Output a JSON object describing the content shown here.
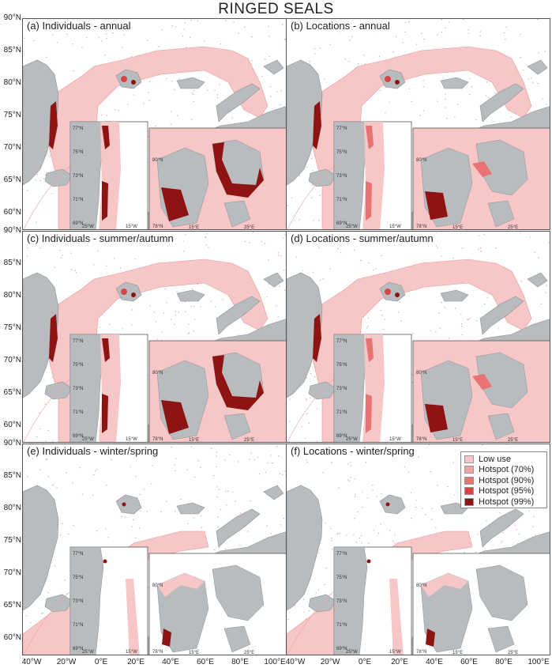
{
  "title": "RINGED SEALS",
  "colors": {
    "water": "#ffffff",
    "land": "#b9bcbf",
    "land_edge": "#8d9094",
    "low_use": "#f7c6c6",
    "hot70": "#f2a2a2",
    "hot90": "#e97373",
    "hot95": "#d94343",
    "hot99": "#8e1313",
    "dots": "#e2a1a1"
  },
  "panels": [
    {
      "label": "(a) Individuals - annual",
      "season": "annual",
      "metric": "individuals"
    },
    {
      "label": "(b) Locations - annual",
      "season": "annual",
      "metric": "locations"
    },
    {
      "label": "(c) Individuals - summer/autumn",
      "season": "summer",
      "metric": "individuals"
    },
    {
      "label": "(d) Locations - summer/autumn",
      "season": "summer",
      "metric": "locations"
    },
    {
      "label": "(e) Individuals - winter/spring",
      "season": "winter",
      "metric": "individuals"
    },
    {
      "label": "(f) Locations - winter/spring",
      "season": "winter",
      "metric": "locations"
    }
  ],
  "lat_labels": [
    "90°N",
    "85°N",
    "80°N",
    "75°N",
    "70°N",
    "65°N",
    "60°N"
  ],
  "lon_labels": [
    "40°W",
    "20°W",
    "0°E",
    "20°E",
    "40°E",
    "60°E",
    "80°E",
    "100°E"
  ],
  "inset_labels": {
    "left_lat": [
      "77°N",
      "75°N",
      "73°N",
      "71°N",
      "69°N"
    ],
    "left_lon": [
      "25°W",
      "15°W"
    ],
    "right_lat": [
      "80°N",
      "78°N"
    ],
    "right_lon": [
      "15°E",
      "25°E"
    ]
  },
  "legend": [
    {
      "label": "Low use",
      "color": "#f7c6c6"
    },
    {
      "label": "Hotspot (70%)",
      "color": "#f2a2a2"
    },
    {
      "label": "Hotspot (90%)",
      "color": "#e97373"
    },
    {
      "label": "Hotspot (95%)",
      "color": "#d94343"
    },
    {
      "label": "Hotspot (99%)",
      "color": "#8e1313"
    }
  ]
}
